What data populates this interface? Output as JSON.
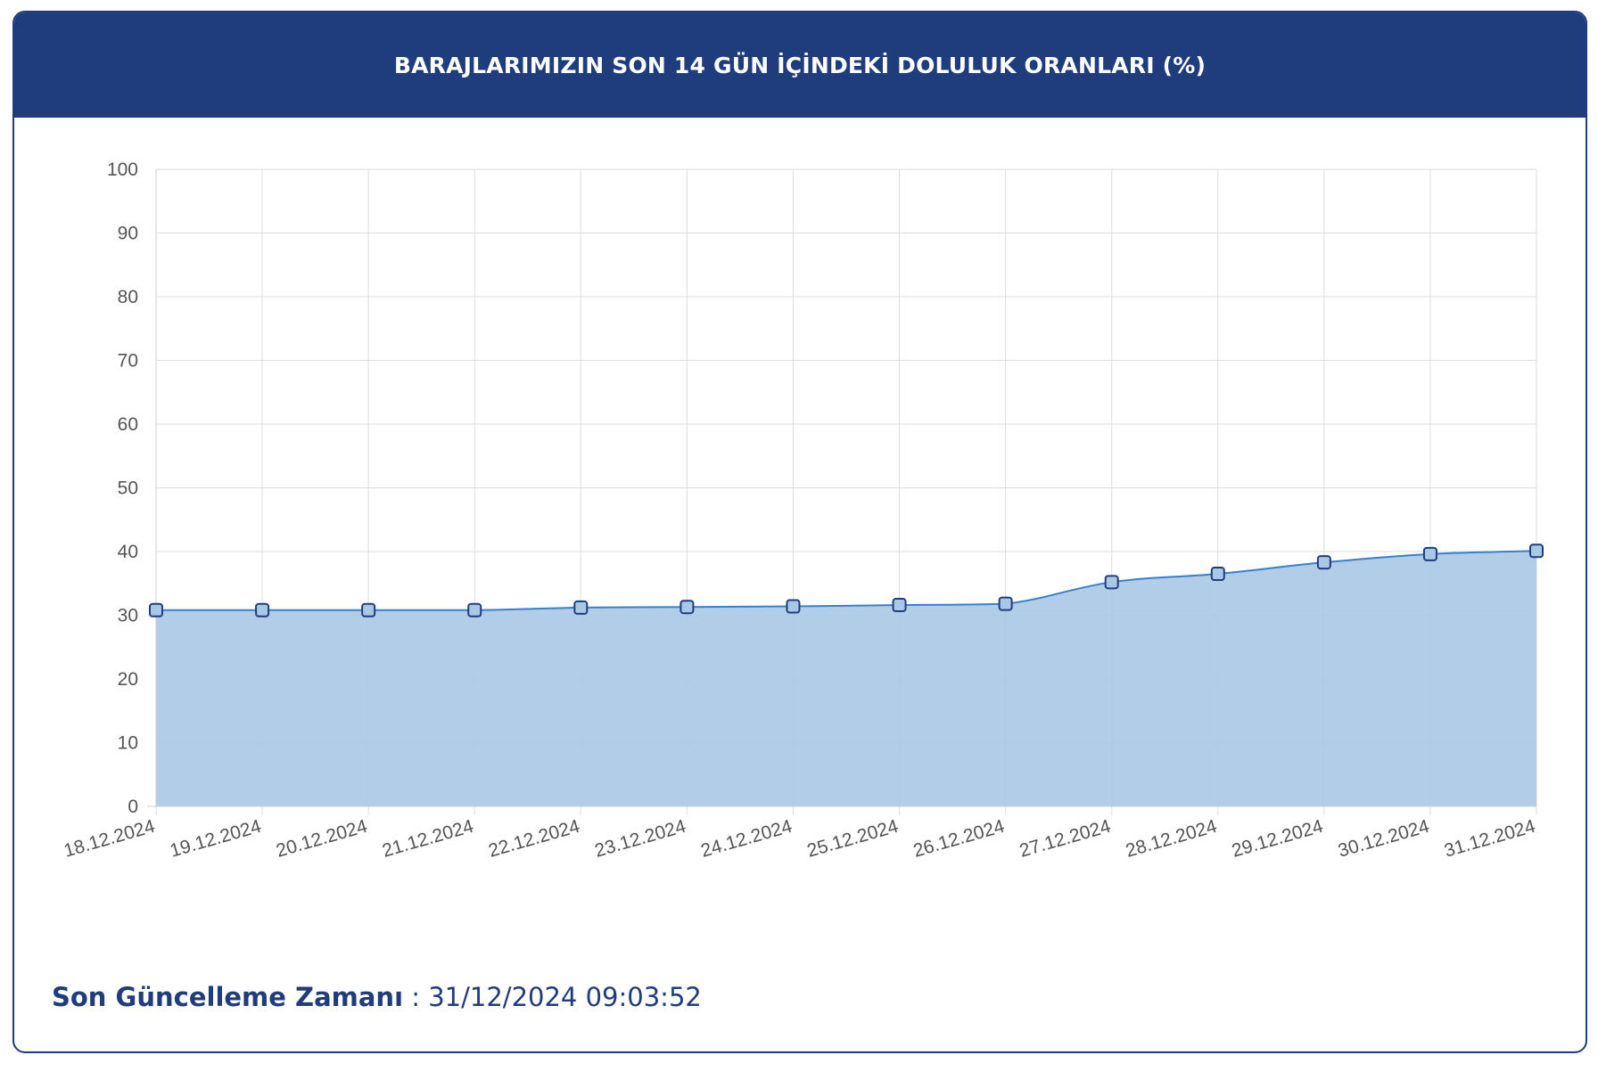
{
  "header": {
    "title": "BARAJLARIMIZIN SON 14 GÜN İÇİNDEKİ DOLULUK ORANLARI (%)"
  },
  "footer": {
    "label": "Son Güncelleme Zamanı",
    "separator": " : ",
    "value": "31/12/2024 09:03:52"
  },
  "colors": {
    "brand": "#1f3c7d",
    "line": "#3a7fc8",
    "fill": "#a9c8e6",
    "marker_fill": "#a9c8e6",
    "marker_stroke": "#1f3c7d"
  },
  "chart_data": {
    "type": "area",
    "title": "BARAJLARIMIZIN SON 14 GÜN İÇİNDEKİ DOLULUK ORANLARI (%)",
    "xlabel": "",
    "ylabel": "",
    "ylim": [
      0,
      100
    ],
    "yticks": [
      0,
      10,
      20,
      30,
      40,
      50,
      60,
      70,
      80,
      90,
      100
    ],
    "grid": true,
    "categories": [
      "18.12.2024",
      "19.12.2024",
      "20.12.2024",
      "21.12.2024",
      "22.12.2024",
      "23.12.2024",
      "24.12.2024",
      "25.12.2024",
      "26.12.2024",
      "27.12.2024",
      "28.12.2024",
      "29.12.2024",
      "30.12.2024",
      "31.12.2024"
    ],
    "series": [
      {
        "values": [
          30.8,
          30.8,
          30.8,
          30.8,
          31.2,
          31.3,
          31.4,
          31.6,
          31.8,
          35.2,
          36.5,
          38.3,
          39.6,
          40.1
        ]
      }
    ]
  }
}
